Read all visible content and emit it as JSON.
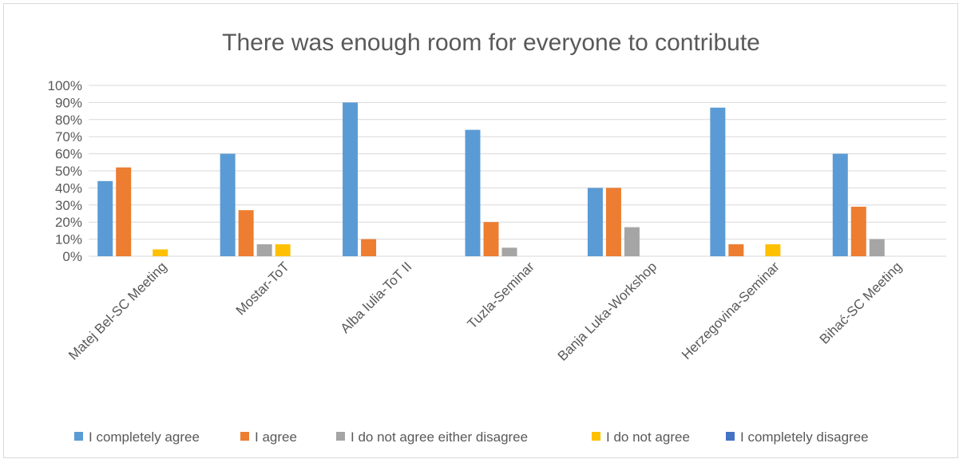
{
  "chart_data": {
    "type": "bar",
    "title": "There was enough room for everyone to contribute",
    "categories": [
      "Matej Bel-SC Meeting",
      "Mostar-ToT",
      "Alba Iulia-ToT II",
      "Tuzla-Seminar",
      "Banja Luka-Workshop",
      "Herzegovina-Seminar",
      "Bihać-SC Meeting"
    ],
    "series": [
      {
        "name": "I completely agree",
        "color": "#5b9bd5",
        "values": [
          44,
          60,
          90,
          74,
          40,
          87,
          60
        ]
      },
      {
        "name": "I agree",
        "color": "#ed7d31",
        "values": [
          52,
          27,
          10,
          20,
          40,
          7,
          29
        ]
      },
      {
        "name": "I do not agree either disagree",
        "color": "#a5a5a5",
        "values": [
          0,
          7,
          0,
          5,
          17,
          0,
          10
        ]
      },
      {
        "name": "I do not agree",
        "color": "#ffc000",
        "values": [
          4,
          7,
          0,
          0,
          0,
          7,
          0
        ]
      },
      {
        "name": "I completely disagree",
        "color": "#4472c4",
        "values": [
          0,
          0,
          0,
          0,
          0,
          0,
          0
        ]
      }
    ],
    "ylim": [
      0,
      100
    ],
    "yticks": [
      "0%",
      "10%",
      "20%",
      "30%",
      "40%",
      "50%",
      "60%",
      "70%",
      "80%",
      "90%",
      "100%"
    ],
    "grid": true,
    "legend": "bottom"
  }
}
